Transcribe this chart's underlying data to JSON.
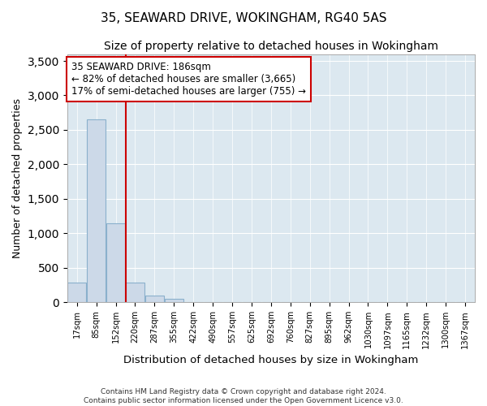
{
  "title1": "35, SEAWARD DRIVE, WOKINGHAM, RG40 5AS",
  "title2": "Size of property relative to detached houses in Wokingham",
  "xlabel": "Distribution of detached houses by size in Wokingham",
  "ylabel": "Number of detached properties",
  "categories": [
    "17sqm",
    "85sqm",
    "152sqm",
    "220sqm",
    "287sqm",
    "355sqm",
    "422sqm",
    "490sqm",
    "557sqm",
    "625sqm",
    "692sqm",
    "760sqm",
    "827sqm",
    "895sqm",
    "962sqm",
    "1030sqm",
    "1097sqm",
    "1165sqm",
    "1232sqm",
    "1300sqm",
    "1367sqm"
  ],
  "bar_heights": [
    280,
    2650,
    1150,
    280,
    95,
    45,
    0,
    0,
    0,
    0,
    0,
    0,
    0,
    0,
    0,
    0,
    0,
    0,
    0,
    0,
    0
  ],
  "bar_color": "#ccd9e8",
  "bar_edge_color": "#8ab0cc",
  "property_line_x": 3,
  "property_line_color": "#cc0000",
  "annotation_line1": "35 SEAWARD DRIVE: 186sqm",
  "annotation_line2": "← 82% of detached houses are smaller (3,665)",
  "annotation_line3": "17% of semi-detached houses are larger (755) →",
  "annotation_box_color": "#ffffff",
  "annotation_box_edge": "#cc0000",
  "ylim": [
    0,
    3600
  ],
  "yticks": [
    0,
    500,
    1000,
    1500,
    2000,
    2500,
    3000,
    3500
  ],
  "footer1": "Contains HM Land Registry data © Crown copyright and database right 2024.",
  "footer2": "Contains public sector information licensed under the Open Government Licence v3.0.",
  "bg_color": "#ffffff",
  "plot_bg_color": "#dce8f0",
  "grid_color": "#ffffff",
  "title1_fontsize": 11,
  "title2_fontsize": 10,
  "annotation_fontsize": 8.5,
  "ylabel_fontsize": 9,
  "xlabel_fontsize": 9.5
}
